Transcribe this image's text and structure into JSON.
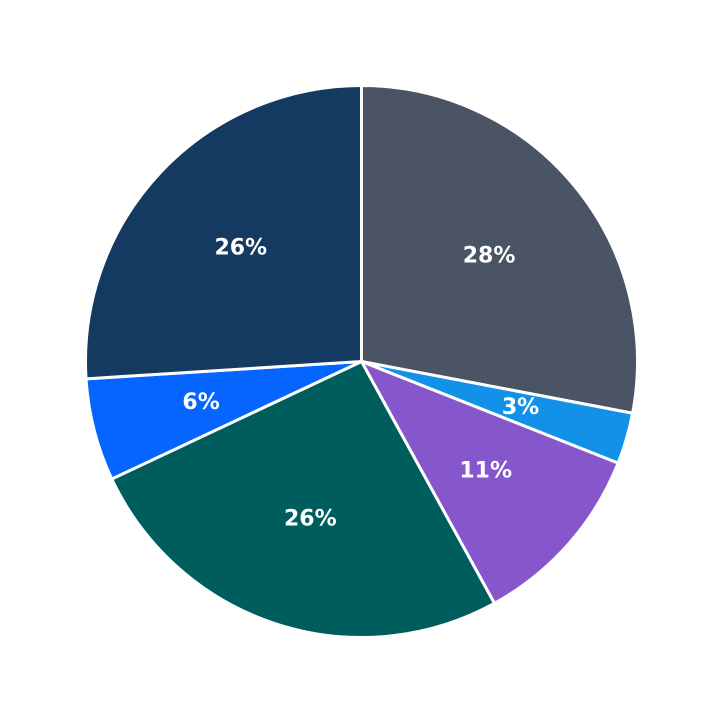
{
  "chart_data": {
    "type": "pie",
    "title": "",
    "start_angle_deg": 90,
    "direction": "clockwise",
    "slices": [
      {
        "label": "28%",
        "value": 28,
        "color": "#4a5464"
      },
      {
        "label": "3%",
        "value": 3,
        "color": "#1192e8"
      },
      {
        "label": "11%",
        "value": 11,
        "color": "#8656cc"
      },
      {
        "label": "26%",
        "value": 26,
        "color": "#005d5d"
      },
      {
        "label": "6%",
        "value": 6,
        "color": "#0664ff"
      },
      {
        "label": "26%",
        "value": 26,
        "color": "#143a62"
      }
    ]
  }
}
